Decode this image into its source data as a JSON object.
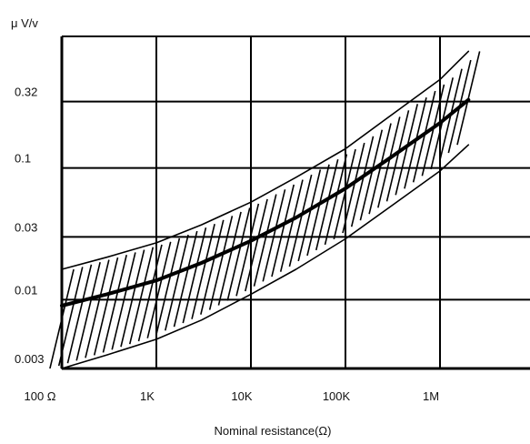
{
  "chart_data": {
    "type": "line",
    "title": "",
    "ylabel": "μ V/v",
    "xlabel": "Nominal resistance(Ω)",
    "x_scale": "log",
    "y_scale": "log",
    "xlim": [
      100,
      10000000
    ],
    "ylim": [
      0.003,
      1
    ],
    "grid": true,
    "x_ticks": [
      {
        "value": 100,
        "label": "100 Ω"
      },
      {
        "value": 1000,
        "label": "1K"
      },
      {
        "value": 10000,
        "label": "10K"
      },
      {
        "value": 100000,
        "label": "100K"
      },
      {
        "value": 1000000,
        "label": "1M"
      }
    ],
    "y_ticks": [
      {
        "value": 0.003,
        "label": "0.003"
      },
      {
        "value": 0.01,
        "label": "0.01"
      },
      {
        "value": 0.03,
        "label": "0.03"
      },
      {
        "value": 0.1,
        "label": "0.1"
      },
      {
        "value": 0.32,
        "label": "0.32"
      }
    ],
    "series": [
      {
        "role": "typical",
        "x": [
          100,
          300,
          1000,
          3000,
          10000,
          30000,
          100000,
          300000,
          1000000,
          2000000
        ],
        "y": [
          0.009,
          0.011,
          0.014,
          0.019,
          0.028,
          0.042,
          0.07,
          0.12,
          0.22,
          0.33
        ]
      },
      {
        "role": "upper bound",
        "x": [
          100,
          300,
          1000,
          3000,
          10000,
          30000,
          100000,
          300000,
          1000000,
          2000000
        ],
        "y": [
          0.017,
          0.021,
          0.027,
          0.037,
          0.055,
          0.085,
          0.14,
          0.25,
          0.47,
          0.77
        ]
      },
      {
        "role": "lower bound",
        "x": [
          100,
          300,
          1000,
          3000,
          10000,
          30000,
          100000,
          300000,
          1000000,
          2000000
        ],
        "y": [
          0.003,
          0.0038,
          0.005,
          0.007,
          0.011,
          0.017,
          0.029,
          0.051,
          0.095,
          0.15
        ]
      }
    ]
  }
}
